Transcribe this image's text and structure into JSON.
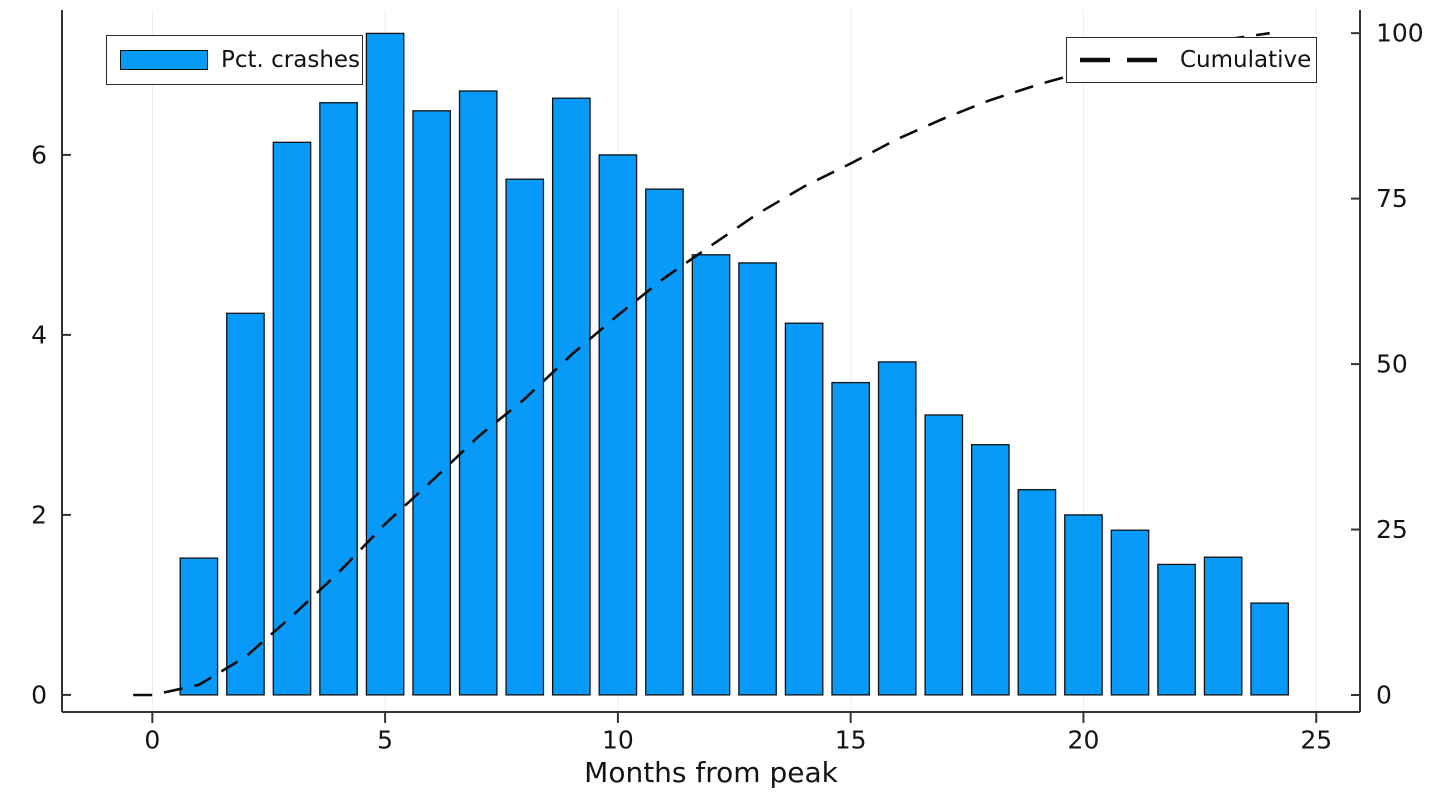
{
  "styles": {
    "background": "#ffffff",
    "grid_color": "#ebebeb",
    "axis_color": "#333333",
    "text_color": "#141414",
    "bar_fill": "#089af8",
    "bar_outline": "#111111",
    "line_color": "#0d0d0d",
    "tick_font_px": 25
  },
  "chart_data": {
    "type": "bar",
    "title": "",
    "xlabel": "Months from peak",
    "categories": [
      1,
      2,
      3,
      4,
      5,
      6,
      7,
      8,
      9,
      10,
      11,
      12,
      13,
      14,
      15,
      16,
      17,
      18,
      19,
      20,
      21,
      22,
      23,
      24
    ],
    "series": [
      {
        "name": "Pct. crashes",
        "kind": "bar",
        "yaxis": "left",
        "color": "#089af8",
        "values": [
          1.52,
          4.24,
          6.14,
          6.58,
          7.35,
          6.49,
          6.71,
          5.73,
          6.63,
          6.0,
          5.62,
          4.89,
          4.8,
          4.13,
          3.47,
          3.7,
          3.11,
          2.78,
          2.28,
          2.0,
          1.83,
          1.45,
          1.53,
          1.02
        ]
      },
      {
        "name": "Cumulative",
        "kind": "line",
        "style": "dashed",
        "yaxis": "right",
        "color": "#0d0d0d",
        "values": [
          1.52,
          5.76,
          11.9,
          18.48,
          25.83,
          32.32,
          39.03,
          44.76,
          51.39,
          57.39,
          63.01,
          67.9,
          72.7,
          76.83,
          80.3,
          84.0,
          87.11,
          89.89,
          92.17,
          94.17,
          96.0,
          97.45,
          98.98,
          100.0
        ],
        "lead_in_points": [
          [
            -0.41,
            0
          ],
          [
            0,
            0
          ]
        ]
      }
    ],
    "axes": {
      "x": {
        "ticks": [
          0,
          5,
          10,
          15,
          20,
          25
        ],
        "range": [
          -1.94,
          25.94
        ],
        "grid": true
      },
      "y_left": {
        "ticks": [
          0,
          2,
          4,
          6
        ],
        "range": [
          -0.19,
          7.61
        ],
        "grid": false
      },
      "y_right": {
        "ticks": [
          0,
          25,
          50,
          75,
          100
        ],
        "range": [
          -2.57,
          103.5
        ],
        "grid": false
      }
    },
    "legend": {
      "bar_legend_position": "top-left",
      "line_legend_position": "top-right"
    }
  }
}
